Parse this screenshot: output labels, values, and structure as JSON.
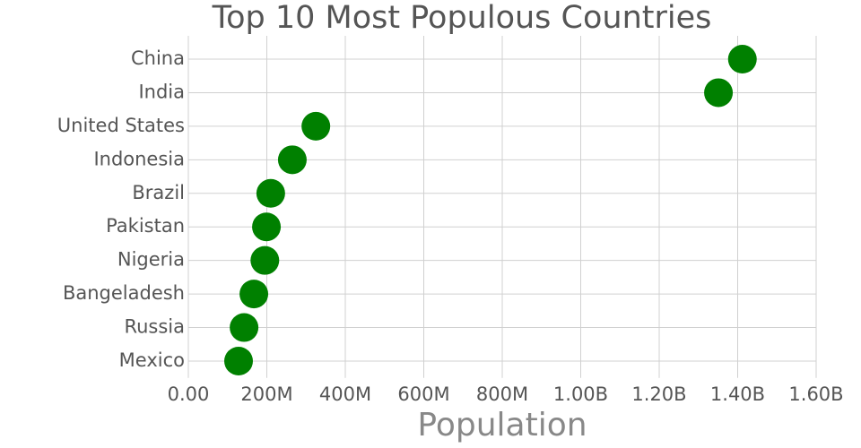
{
  "chart_data": {
    "type": "dot",
    "title": "Top 10 Most Populous Countries",
    "x_label": "Population",
    "categories": [
      "China",
      "India",
      "United States",
      "Indonesia",
      "Brazil",
      "Pakistan",
      "Nigeria",
      "Bangeladesh",
      "Russia",
      "Mexico"
    ],
    "values": [
      1412000000,
      1351000000,
      325000000,
      265000000,
      210000000,
      199000000,
      195000000,
      167000000,
      142000000,
      128000000
    ],
    "color": "#008000",
    "xlim": [
      0,
      1600000000
    ],
    "xticks": [
      {
        "value": 0,
        "label": "0.00"
      },
      {
        "value": 200000000,
        "label": "200M"
      },
      {
        "value": 400000000,
        "label": "400M"
      },
      {
        "value": 600000000,
        "label": "600M"
      },
      {
        "value": 800000000,
        "label": "800M"
      },
      {
        "value": 1000000000,
        "label": "1.00B"
      },
      {
        "value": 1200000000,
        "label": "1.20B"
      },
      {
        "value": 1400000000,
        "label": "1.40B"
      },
      {
        "value": 1600000000,
        "label": "1.60B"
      }
    ],
    "grid": true
  }
}
